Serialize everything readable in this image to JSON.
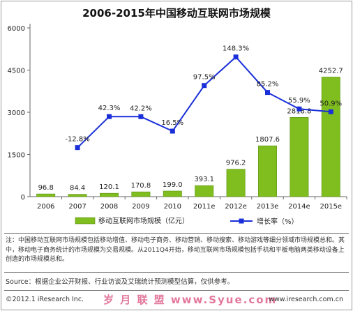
{
  "chart_data": {
    "type": "bar",
    "title": "2006-2015年中国移动互联网市场规模",
    "categories": [
      "2006",
      "2007",
      "2008",
      "2009",
      "2010",
      "2011e",
      "2012e",
      "2013e",
      "2014e",
      "2015e"
    ],
    "series": [
      {
        "name": "移动互联网市场规模（亿元）",
        "type": "bar",
        "values": [
          96.8,
          84.4,
          120.1,
          170.8,
          199.0,
          393.1,
          976.2,
          1807.6,
          2818.8,
          4252.7
        ],
        "labels": [
          "96.8",
          "84.4",
          "120.1",
          "170.8",
          "199.0",
          "393.1",
          "976.2",
          "1807.6",
          "2818.8",
          "4252.7"
        ],
        "color": "#7fbe1e"
      },
      {
        "name": "增长率（%）",
        "type": "line",
        "values": [
          null,
          -12.8,
          42.3,
          42.2,
          16.5,
          97.5,
          148.3,
          85.2,
          55.9,
          50.9
        ],
        "labels": [
          "",
          "-12.8%",
          "42.3%",
          "42.2%",
          "16.5%",
          "97.5%",
          "148.3%",
          "85.2%",
          "55.9%",
          "50.9%"
        ],
        "color": "#1a2fd8"
      }
    ],
    "yticks": [
      0,
      1500,
      3000,
      4500,
      6000
    ],
    "ylim": [
      0,
      6000
    ],
    "grid": false,
    "legend": "bottom"
  },
  "notes": "注：中国移动互联网市场规模包括移动增值、移动电子商务、移动营销、移动搜索、移动游戏等细分领域市场规模总和。其中，移动电子商务统计的市场规模为交易规模。从2011Q4开始，移动互联网市场规模包括手机和平板电脑两类移动设备上创造的市场规模总和。",
  "source": "Source：根据企业公开财报、行业访谈及艾瑞统计预测模型估算，仅供参考。",
  "footer": {
    "copyright": "©2012.1 iResearch Inc.",
    "watermark": "岁 月 联 盟  www.Syue.com",
    "website": "www.iresearch.com.cn"
  }
}
